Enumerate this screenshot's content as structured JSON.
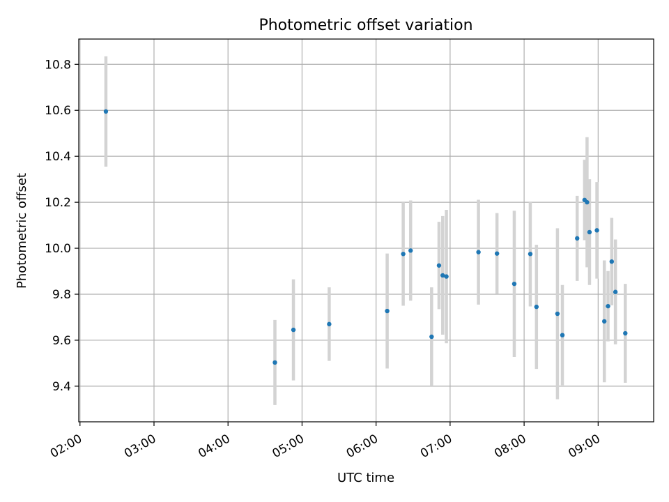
{
  "chart_data": {
    "type": "scatter",
    "title": "Photometric offset variation",
    "xlabel": "UTC time",
    "ylabel": "Photometric offset",
    "grid": true,
    "xlim": [
      "01:59",
      "09:45"
    ],
    "ylim": [
      9.245,
      10.91
    ],
    "xticks": [
      "02:00",
      "03:00",
      "04:00",
      "05:00",
      "06:00",
      "07:00",
      "08:00",
      "09:00"
    ],
    "yticks": [
      9.4,
      9.6,
      9.8,
      10.0,
      10.2,
      10.4,
      10.6,
      10.8
    ],
    "point_color": "#1f77b4",
    "errorbar_color": "#d3d3d3",
    "points": [
      {
        "t": "02:21",
        "y": 10.595,
        "err": 0.24
      },
      {
        "t": "04:38",
        "y": 9.503,
        "err": 0.185
      },
      {
        "t": "04:53",
        "y": 9.645,
        "err": 0.22
      },
      {
        "t": "05:22",
        "y": 9.67,
        "err": 0.16
      },
      {
        "t": "06:09",
        "y": 9.727,
        "err": 0.25
      },
      {
        "t": "06:22",
        "y": 9.975,
        "err": 0.225
      },
      {
        "t": "06:28",
        "y": 9.99,
        "err": 0.218
      },
      {
        "t": "06:45",
        "y": 9.615,
        "err": 0.215
      },
      {
        "t": "06:51",
        "y": 9.925,
        "err": 0.19
      },
      {
        "t": "06:54",
        "y": 9.882,
        "err": 0.258
      },
      {
        "t": "06:57",
        "y": 9.877,
        "err": 0.29
      },
      {
        "t": "07:23",
        "y": 9.983,
        "err": 0.228
      },
      {
        "t": "07:38",
        "y": 9.977,
        "err": 0.176
      },
      {
        "t": "07:52",
        "y": 9.845,
        "err": 0.318
      },
      {
        "t": "08:05",
        "y": 9.975,
        "err": 0.228
      },
      {
        "t": "08:10",
        "y": 9.745,
        "err": 0.27
      },
      {
        "t": "08:27",
        "y": 9.715,
        "err": 0.372
      },
      {
        "t": "08:31",
        "y": 9.622,
        "err": 0.218
      },
      {
        "t": "08:43",
        "y": 10.043,
        "err": 0.185
      },
      {
        "t": "08:49",
        "y": 10.21,
        "err": 0.175
      },
      {
        "t": "08:51",
        "y": 10.2,
        "err": 0.283
      },
      {
        "t": "08:53",
        "y": 10.07,
        "err": 0.23
      },
      {
        "t": "08:59",
        "y": 10.078,
        "err": 0.21
      },
      {
        "t": "09:05",
        "y": 9.682,
        "err": 0.265
      },
      {
        "t": "09:08",
        "y": 9.748,
        "err": 0.153
      },
      {
        "t": "09:11",
        "y": 9.942,
        "err": 0.19
      },
      {
        "t": "09:14",
        "y": 9.81,
        "err": 0.228
      },
      {
        "t": "09:22",
        "y": 9.63,
        "err": 0.215
      }
    ]
  }
}
